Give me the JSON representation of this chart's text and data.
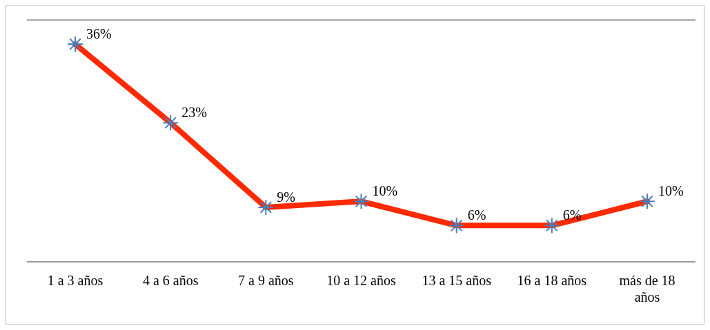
{
  "chart_data": {
    "type": "line",
    "categories": [
      "1 a 3 años",
      "4 a 6 años",
      "7 a 9 años",
      "10 a 12 años",
      "13 a 15 años",
      "16 a 18 años",
      "más de 18 años"
    ],
    "series": [
      {
        "color": "#ff2a00",
        "values": [
          36,
          23,
          9,
          10,
          6,
          6,
          10
        ],
        "value_labels": [
          "36%",
          "23%",
          "9%",
          "10%",
          "6%",
          "6%",
          "10%"
        ]
      }
    ],
    "ylim": [
      0,
      40
    ],
    "grid": "y",
    "tick_labels": "x",
    "marker": "cross",
    "line_style": "solid"
  }
}
